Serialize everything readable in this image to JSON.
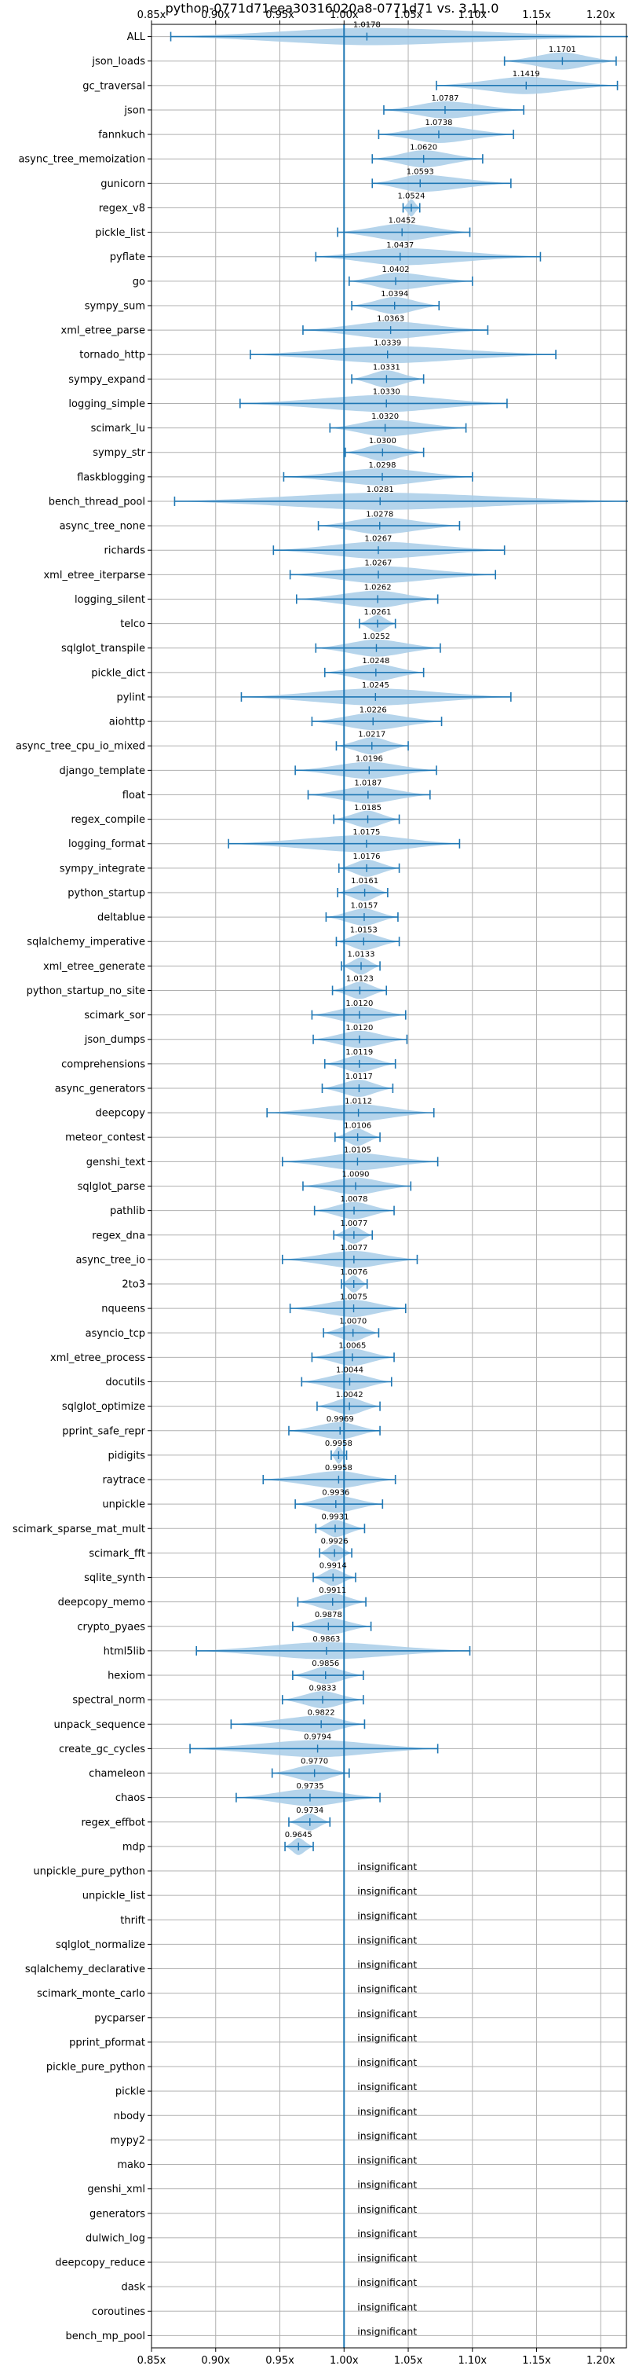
{
  "chart_data": {
    "type": "violin",
    "title": "python-0771d71eea30316020a8-0771d71 vs. 3.11.0",
    "xlim": [
      0.85,
      1.22
    ],
    "x_ticks": [
      "0.85x",
      "0.90x",
      "0.95x",
      "1.00x",
      "1.05x",
      "1.10x",
      "1.15x",
      "1.20x"
    ],
    "x_tick_values": [
      0.85,
      0.9,
      0.95,
      1.0,
      1.05,
      1.1,
      1.15,
      1.2
    ],
    "reference_line": 1.0,
    "grid": true,
    "colors": {
      "violin": "#a8cce8",
      "line": "#1f77b4"
    },
    "insignificant_label": "insignificant",
    "benchmarks": [
      {
        "name": "ALL",
        "value": 1.0178,
        "label": "1.0178",
        "min": 0.865,
        "max": 1.225
      },
      {
        "name": "json_loads",
        "value": 1.1701,
        "label": "1.1701",
        "min": 1.125,
        "max": 1.212
      },
      {
        "name": "gc_traversal",
        "value": 1.1419,
        "label": "1.1419",
        "min": 1.072,
        "max": 1.213
      },
      {
        "name": "json",
        "value": 1.0787,
        "label": "1.0787",
        "min": 1.031,
        "max": 1.14
      },
      {
        "name": "fannkuch",
        "value": 1.0738,
        "label": "1.0738",
        "min": 1.027,
        "max": 1.132
      },
      {
        "name": "async_tree_memoization",
        "value": 1.062,
        "label": "1.0620",
        "min": 1.022,
        "max": 1.108
      },
      {
        "name": "gunicorn",
        "value": 1.0593,
        "label": "1.0593",
        "min": 1.022,
        "max": 1.13
      },
      {
        "name": "regex_v8",
        "value": 1.0524,
        "label": "1.0524",
        "min": 1.046,
        "max": 1.059
      },
      {
        "name": "pickle_list",
        "value": 1.0452,
        "label": "1.0452",
        "min": 0.995,
        "max": 1.098
      },
      {
        "name": "pyflate",
        "value": 1.0437,
        "label": "1.0437",
        "min": 0.978,
        "max": 1.153
      },
      {
        "name": "go",
        "value": 1.0402,
        "label": "1.0402",
        "min": 1.004,
        "max": 1.1
      },
      {
        "name": "sympy_sum",
        "value": 1.0394,
        "label": "1.0394",
        "min": 1.006,
        "max": 1.074
      },
      {
        "name": "xml_etree_parse",
        "value": 1.0363,
        "label": "1.0363",
        "min": 0.968,
        "max": 1.112
      },
      {
        "name": "tornado_http",
        "value": 1.0339,
        "label": "1.0339",
        "min": 0.927,
        "max": 1.165
      },
      {
        "name": "sympy_expand",
        "value": 1.0331,
        "label": "1.0331",
        "min": 1.006,
        "max": 1.062
      },
      {
        "name": "logging_simple",
        "value": 1.033,
        "label": "1.0330",
        "min": 0.919,
        "max": 1.127
      },
      {
        "name": "scimark_lu",
        "value": 1.032,
        "label": "1.0320",
        "min": 0.989,
        "max": 1.095
      },
      {
        "name": "sympy_str",
        "value": 1.03,
        "label": "1.0300",
        "min": 1.001,
        "max": 1.062
      },
      {
        "name": "flaskblogging",
        "value": 1.0298,
        "label": "1.0298",
        "min": 0.953,
        "max": 1.1
      },
      {
        "name": "bench_thread_pool",
        "value": 1.0281,
        "label": "1.0281",
        "min": 0.868,
        "max": 1.225
      },
      {
        "name": "async_tree_none",
        "value": 1.0278,
        "label": "1.0278",
        "min": 0.98,
        "max": 1.09
      },
      {
        "name": "richards",
        "value": 1.0267,
        "label": "1.0267",
        "min": 0.945,
        "max": 1.125
      },
      {
        "name": "xml_etree_iterparse",
        "value": 1.0267,
        "label": "1.0267",
        "min": 0.958,
        "max": 1.118
      },
      {
        "name": "logging_silent",
        "value": 1.0262,
        "label": "1.0262",
        "min": 0.963,
        "max": 1.073
      },
      {
        "name": "telco",
        "value": 1.0261,
        "label": "1.0261",
        "min": 1.012,
        "max": 1.04
      },
      {
        "name": "sqlglot_transpile",
        "value": 1.0252,
        "label": "1.0252",
        "min": 0.978,
        "max": 1.075
      },
      {
        "name": "pickle_dict",
        "value": 1.0248,
        "label": "1.0248",
        "min": 0.985,
        "max": 1.062
      },
      {
        "name": "pylint",
        "value": 1.0245,
        "label": "1.0245",
        "min": 0.92,
        "max": 1.13
      },
      {
        "name": "aiohttp",
        "value": 1.0226,
        "label": "1.0226",
        "min": 0.975,
        "max": 1.076
      },
      {
        "name": "async_tree_cpu_io_mixed",
        "value": 1.0217,
        "label": "1.0217",
        "min": 0.994,
        "max": 1.05
      },
      {
        "name": "django_template",
        "value": 1.0196,
        "label": "1.0196",
        "min": 0.962,
        "max": 1.072
      },
      {
        "name": "float",
        "value": 1.0187,
        "label": "1.0187",
        "min": 0.972,
        "max": 1.067
      },
      {
        "name": "regex_compile",
        "value": 1.0185,
        "label": "1.0185",
        "min": 0.992,
        "max": 1.043
      },
      {
        "name": "logging_format",
        "value": 1.0175,
        "label": "1.0175",
        "min": 0.91,
        "max": 1.09
      },
      {
        "name": "sympy_integrate",
        "value": 1.0176,
        "label": "1.0176",
        "min": 0.996,
        "max": 1.043
      },
      {
        "name": "python_startup",
        "value": 1.0161,
        "label": "1.0161",
        "min": 0.995,
        "max": 1.034
      },
      {
        "name": "deltablue",
        "value": 1.0157,
        "label": "1.0157",
        "min": 0.986,
        "max": 1.042
      },
      {
        "name": "sqlalchemy_imperative",
        "value": 1.0153,
        "label": "1.0153",
        "min": 0.994,
        "max": 1.043
      },
      {
        "name": "xml_etree_generate",
        "value": 1.0133,
        "label": "1.0133",
        "min": 0.998,
        "max": 1.028
      },
      {
        "name": "python_startup_no_site",
        "value": 1.0123,
        "label": "1.0123",
        "min": 0.991,
        "max": 1.033
      },
      {
        "name": "scimark_sor",
        "value": 1.012,
        "label": "1.0120",
        "min": 0.975,
        "max": 1.048
      },
      {
        "name": "json_dumps",
        "value": 1.012,
        "label": "1.0120",
        "min": 0.976,
        "max": 1.049
      },
      {
        "name": "comprehensions",
        "value": 1.0119,
        "label": "1.0119",
        "min": 0.985,
        "max": 1.04
      },
      {
        "name": "async_generators",
        "value": 1.0117,
        "label": "1.0117",
        "min": 0.983,
        "max": 1.038
      },
      {
        "name": "deepcopy",
        "value": 1.0112,
        "label": "1.0112",
        "min": 0.94,
        "max": 1.07
      },
      {
        "name": "meteor_contest",
        "value": 1.0106,
        "label": "1.0106",
        "min": 0.993,
        "max": 1.028
      },
      {
        "name": "genshi_text",
        "value": 1.0105,
        "label": "1.0105",
        "min": 0.952,
        "max": 1.073
      },
      {
        "name": "sqlglot_parse",
        "value": 1.009,
        "label": "1.0090",
        "min": 0.968,
        "max": 1.052
      },
      {
        "name": "pathlib",
        "value": 1.0078,
        "label": "1.0078",
        "min": 0.977,
        "max": 1.039
      },
      {
        "name": "regex_dna",
        "value": 1.0077,
        "label": "1.0077",
        "min": 0.992,
        "max": 1.022
      },
      {
        "name": "async_tree_io",
        "value": 1.0077,
        "label": "1.0077",
        "min": 0.952,
        "max": 1.057
      },
      {
        "name": "2to3",
        "value": 1.0076,
        "label": "1.0076",
        "min": 0.998,
        "max": 1.018
      },
      {
        "name": "nqueens",
        "value": 1.0075,
        "label": "1.0075",
        "min": 0.958,
        "max": 1.048
      },
      {
        "name": "asyncio_tcp",
        "value": 1.007,
        "label": "1.0070",
        "min": 0.984,
        "max": 1.027
      },
      {
        "name": "xml_etree_process",
        "value": 1.0065,
        "label": "1.0065",
        "min": 0.975,
        "max": 1.039
      },
      {
        "name": "docutils",
        "value": 1.0044,
        "label": "1.0044",
        "min": 0.967,
        "max": 1.037
      },
      {
        "name": "sqlglot_optimize",
        "value": 1.0042,
        "label": "1.0042",
        "min": 0.979,
        "max": 1.028
      },
      {
        "name": "pprint_safe_repr",
        "value": 0.9969,
        "label": "0.9969",
        "min": 0.957,
        "max": 1.028
      },
      {
        "name": "pidigits",
        "value": 0.9958,
        "label": "0.9958",
        "min": 0.99,
        "max": 1.002
      },
      {
        "name": "raytrace",
        "value": 0.9958,
        "label": "0.9958",
        "min": 0.937,
        "max": 1.04
      },
      {
        "name": "unpickle",
        "value": 0.9936,
        "label": "0.9936",
        "min": 0.962,
        "max": 1.03
      },
      {
        "name": "scimark_sparse_mat_mult",
        "value": 0.9931,
        "label": "0.9931",
        "min": 0.978,
        "max": 1.016
      },
      {
        "name": "scimark_fft",
        "value": 0.9926,
        "label": "0.9926",
        "min": 0.981,
        "max": 1.006
      },
      {
        "name": "sqlite_synth",
        "value": 0.9914,
        "label": "0.9914",
        "min": 0.976,
        "max": 1.009
      },
      {
        "name": "deepcopy_memo",
        "value": 0.9911,
        "label": "0.9911",
        "min": 0.964,
        "max": 1.017
      },
      {
        "name": "crypto_pyaes",
        "value": 0.9878,
        "label": "0.9878",
        "min": 0.96,
        "max": 1.021
      },
      {
        "name": "html5lib",
        "value": 0.9863,
        "label": "0.9863",
        "min": 0.885,
        "max": 1.098
      },
      {
        "name": "hexiom",
        "value": 0.9856,
        "label": "0.9856",
        "min": 0.96,
        "max": 1.015
      },
      {
        "name": "spectral_norm",
        "value": 0.9833,
        "label": "0.9833",
        "min": 0.952,
        "max": 1.015
      },
      {
        "name": "unpack_sequence",
        "value": 0.9822,
        "label": "0.9822",
        "min": 0.912,
        "max": 1.016
      },
      {
        "name": "create_gc_cycles",
        "value": 0.9794,
        "label": "0.9794",
        "min": 0.88,
        "max": 1.073
      },
      {
        "name": "chameleon",
        "value": 0.977,
        "label": "0.9770",
        "min": 0.944,
        "max": 1.004
      },
      {
        "name": "chaos",
        "value": 0.9735,
        "label": "0.9735",
        "min": 0.916,
        "max": 1.028
      },
      {
        "name": "regex_effbot",
        "value": 0.9734,
        "label": "0.9734",
        "min": 0.957,
        "max": 0.989
      },
      {
        "name": "mdp",
        "value": 0.9645,
        "label": "0.9645",
        "min": 0.954,
        "max": 0.976
      },
      {
        "name": "unpickle_pure_python",
        "insignificant": true
      },
      {
        "name": "unpickle_list",
        "insignificant": true
      },
      {
        "name": "thrift",
        "insignificant": true
      },
      {
        "name": "sqlglot_normalize",
        "insignificant": true
      },
      {
        "name": "sqlalchemy_declarative",
        "insignificant": true
      },
      {
        "name": "scimark_monte_carlo",
        "insignificant": true
      },
      {
        "name": "pycparser",
        "insignificant": true
      },
      {
        "name": "pprint_pformat",
        "insignificant": true
      },
      {
        "name": "pickle_pure_python",
        "insignificant": true
      },
      {
        "name": "pickle",
        "insignificant": true
      },
      {
        "name": "nbody",
        "insignificant": true
      },
      {
        "name": "mypy2",
        "insignificant": true
      },
      {
        "name": "mako",
        "insignificant": true
      },
      {
        "name": "genshi_xml",
        "insignificant": true
      },
      {
        "name": "generators",
        "insignificant": true
      },
      {
        "name": "dulwich_log",
        "insignificant": true
      },
      {
        "name": "deepcopy_reduce",
        "insignificant": true
      },
      {
        "name": "dask",
        "insignificant": true
      },
      {
        "name": "coroutines",
        "insignificant": true
      },
      {
        "name": "bench_mp_pool",
        "insignificant": true
      }
    ]
  }
}
